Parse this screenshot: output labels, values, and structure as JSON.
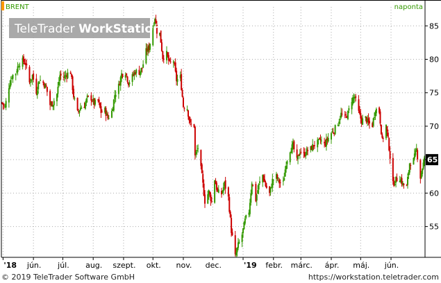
{
  "symbol_label": "BRENT",
  "interval_label": "naponta",
  "watermark": {
    "text_light": "TeleTrader ",
    "text_bold": "WorkStation"
  },
  "footer": {
    "copyright": "© 2019 TeleTrader Software GmbH",
    "url": "https://workstation.teletrader.com"
  },
  "colors": {
    "up": "#339900",
    "down": "#cc0000",
    "grid": "#aaaaaa",
    "axis": "#000000",
    "label_green": "#339900",
    "last_tag_bg": "#000000"
  },
  "chart_data": {
    "type": "candlestick",
    "x_range": [
      "2018-04-30",
      "2019-07-05"
    ],
    "ylim": [
      50.5,
      87
    ],
    "y_ticks": [
      55,
      60,
      65,
      70,
      75,
      80,
      85
    ],
    "y_axis_side": "right",
    "grid": "dotted",
    "x_ticks": [
      {
        "label": "'18",
        "date": "2018-05-01"
      },
      {
        "label": "jún.",
        "date": "2018-06-01"
      },
      {
        "label": "júl.",
        "date": "2018-07-01"
      },
      {
        "label": "aug.",
        "date": "2018-08-01"
      },
      {
        "label": "szept.",
        "date": "2018-09-01"
      },
      {
        "label": "okt.",
        "date": "2018-10-01"
      },
      {
        "label": "nov.",
        "date": "2018-11-01"
      },
      {
        "label": "dec.",
        "date": "2018-12-01"
      },
      {
        "label": "'19",
        "date": "2019-01-01"
      },
      {
        "label": "febr.",
        "date": "2019-02-01"
      },
      {
        "label": "márc.",
        "date": "2019-03-01"
      },
      {
        "label": "ápr.",
        "date": "2019-04-01"
      },
      {
        "label": "máj.",
        "date": "2019-05-01"
      },
      {
        "label": "jún.",
        "date": "2019-06-01"
      }
    ],
    "last_value": 65,
    "last_value_label": "65",
    "close_path": [
      [
        "2018-04-30",
        73.5
      ],
      [
        "2018-05-03",
        72.8
      ],
      [
        "2018-05-07",
        76.0
      ],
      [
        "2018-05-10",
        77.5
      ],
      [
        "2018-05-14",
        78.0
      ],
      [
        "2018-05-17",
        79.3
      ],
      [
        "2018-05-21",
        79.8
      ],
      [
        "2018-05-24",
        79.4
      ],
      [
        "2018-05-28",
        76.5
      ],
      [
        "2018-05-31",
        77.6
      ],
      [
        "2018-06-04",
        75.2
      ],
      [
        "2018-06-07",
        77.0
      ],
      [
        "2018-06-11",
        76.5
      ],
      [
        "2018-06-14",
        75.8
      ],
      [
        "2018-06-18",
        73.2
      ],
      [
        "2018-06-21",
        73.5
      ],
      [
        "2018-06-25",
        74.8
      ],
      [
        "2018-06-28",
        77.6
      ],
      [
        "2018-07-02",
        77.3
      ],
      [
        "2018-07-05",
        77.8
      ],
      [
        "2018-07-09",
        78.1
      ],
      [
        "2018-07-12",
        74.5
      ],
      [
        "2018-07-16",
        72.0
      ],
      [
        "2018-07-19",
        72.8
      ],
      [
        "2018-07-23",
        73.1
      ],
      [
        "2018-07-26",
        74.2
      ],
      [
        "2018-07-30",
        74.2
      ],
      [
        "2018-08-02",
        73.4
      ],
      [
        "2018-08-06",
        73.8
      ],
      [
        "2018-08-09",
        72.1
      ],
      [
        "2018-08-13",
        72.4
      ],
      [
        "2018-08-16",
        71.2
      ],
      [
        "2018-08-20",
        72.2
      ],
      [
        "2018-08-23",
        74.7
      ],
      [
        "2018-08-27",
        76.0
      ],
      [
        "2018-08-30",
        77.8
      ],
      [
        "2018-09-03",
        78.1
      ],
      [
        "2018-09-06",
        76.5
      ],
      [
        "2018-09-10",
        77.4
      ],
      [
        "2018-09-13",
        78.2
      ],
      [
        "2018-09-17",
        78.1
      ],
      [
        "2018-09-20",
        78.7
      ],
      [
        "2018-09-24",
        81.2
      ],
      [
        "2018-09-27",
        81.7
      ],
      [
        "2018-10-01",
        84.8
      ],
      [
        "2018-10-03",
        86.3
      ],
      [
        "2018-10-05",
        84.2
      ],
      [
        "2018-10-08",
        83.9
      ],
      [
        "2018-10-11",
        80.3
      ],
      [
        "2018-10-15",
        80.8
      ],
      [
        "2018-10-18",
        79.3
      ],
      [
        "2018-10-22",
        79.8
      ],
      [
        "2018-10-25",
        76.9
      ],
      [
        "2018-10-29",
        77.3
      ],
      [
        "2018-11-01",
        73.0
      ],
      [
        "2018-11-05",
        72.7
      ],
      [
        "2018-11-08",
        70.2
      ],
      [
        "2018-11-12",
        70.1
      ],
      [
        "2018-11-13",
        65.5
      ],
      [
        "2018-11-16",
        66.8
      ],
      [
        "2018-11-20",
        62.5
      ],
      [
        "2018-11-23",
        58.8
      ],
      [
        "2018-11-27",
        60.2
      ],
      [
        "2018-11-30",
        58.7
      ],
      [
        "2018-12-03",
        62.1
      ],
      [
        "2018-12-06",
        60.1
      ],
      [
        "2018-12-10",
        59.9
      ],
      [
        "2018-12-13",
        61.4
      ],
      [
        "2018-12-17",
        59.3
      ],
      [
        "2018-12-20",
        54.4
      ],
      [
        "2018-12-24",
        50.5
      ],
      [
        "2018-12-27",
        52.2
      ],
      [
        "2018-12-31",
        53.8
      ],
      [
        "2019-01-03",
        55.9
      ],
      [
        "2019-01-07",
        57.3
      ],
      [
        "2019-01-10",
        61.7
      ],
      [
        "2019-01-14",
        59.0
      ],
      [
        "2019-01-17",
        61.2
      ],
      [
        "2019-01-21",
        62.7
      ],
      [
        "2019-01-24",
        61.1
      ],
      [
        "2019-01-28",
        59.9
      ],
      [
        "2019-01-31",
        61.9
      ],
      [
        "2019-02-04",
        62.5
      ],
      [
        "2019-02-07",
        61.6
      ],
      [
        "2019-02-11",
        61.5
      ],
      [
        "2019-02-14",
        64.6
      ],
      [
        "2019-02-18",
        66.5
      ],
      [
        "2019-02-21",
        67.1
      ],
      [
        "2019-02-25",
        64.8
      ],
      [
        "2019-02-28",
        66.3
      ],
      [
        "2019-03-04",
        65.7
      ],
      [
        "2019-03-07",
        66.3
      ],
      [
        "2019-03-11",
        66.6
      ],
      [
        "2019-03-14",
        67.2
      ],
      [
        "2019-03-18",
        67.5
      ],
      [
        "2019-03-21",
        67.9
      ],
      [
        "2019-03-25",
        67.2
      ],
      [
        "2019-03-28",
        68.0
      ],
      [
        "2019-04-01",
        69.0
      ],
      [
        "2019-04-04",
        69.4
      ],
      [
        "2019-04-08",
        70.6
      ],
      [
        "2019-04-11",
        71.8
      ],
      [
        "2019-04-15",
        71.2
      ],
      [
        "2019-04-18",
        71.9
      ],
      [
        "2019-04-22",
        74.0
      ],
      [
        "2019-04-25",
        74.4
      ],
      [
        "2019-04-29",
        72.0
      ],
      [
        "2019-05-02",
        70.8
      ],
      [
        "2019-05-06",
        71.2
      ],
      [
        "2019-05-09",
        70.4
      ],
      [
        "2019-05-13",
        70.2
      ],
      [
        "2019-05-16",
        72.6
      ],
      [
        "2019-05-20",
        72.2
      ],
      [
        "2019-05-23",
        67.8
      ],
      [
        "2019-05-27",
        70.1
      ],
      [
        "2019-05-30",
        66.8
      ],
      [
        "2019-06-03",
        61.3
      ],
      [
        "2019-06-06",
        62.0
      ],
      [
        "2019-06-10",
        62.3
      ],
      [
        "2019-06-13",
        61.3
      ],
      [
        "2019-06-17",
        60.9
      ],
      [
        "2019-06-20",
        64.5
      ],
      [
        "2019-06-24",
        64.9
      ],
      [
        "2019-06-27",
        66.5
      ],
      [
        "2019-07-01",
        62.4
      ],
      [
        "2019-07-03",
        63.8
      ],
      [
        "2019-07-05",
        65.0
      ]
    ]
  }
}
